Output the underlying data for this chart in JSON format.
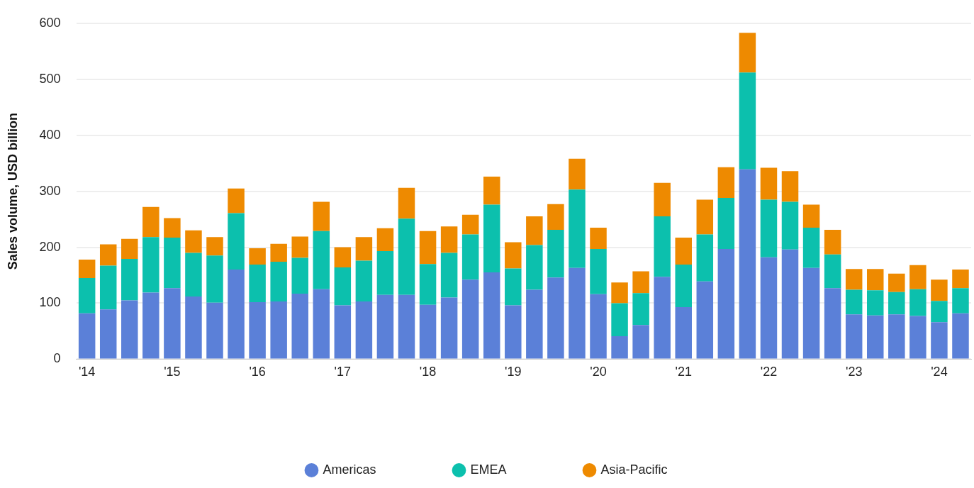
{
  "chart_data": {
    "type": "bar",
    "stacked": true,
    "ylabel": "Sales volume, USD billion",
    "categories": [
      "'14",
      null,
      null,
      null,
      "'15",
      null,
      null,
      null,
      "'16",
      null,
      null,
      null,
      "'17",
      null,
      null,
      null,
      "'18",
      null,
      null,
      null,
      "'19",
      null,
      null,
      null,
      "'20",
      null,
      null,
      null,
      "'21",
      null,
      null,
      null,
      "'22",
      null,
      null,
      null,
      "'23",
      null,
      null,
      null,
      "'24",
      null
    ],
    "series": [
      {
        "name": "Americas",
        "color": "#5b80d8",
        "values": [
          82,
          89,
          105,
          119,
          127,
          112,
          101,
          160,
          102,
          103,
          117,
          125,
          96,
          103,
          115,
          115,
          97,
          110,
          142,
          155,
          96,
          124,
          146,
          163,
          116,
          41,
          61,
          147,
          93,
          139,
          197,
          339,
          182,
          196,
          163,
          127,
          80,
          78,
          80,
          77,
          66,
          82
        ]
      },
      {
        "name": "EMEA",
        "color": "#0cc0ad",
        "values": [
          63,
          78,
          74,
          99,
          90,
          78,
          84,
          101,
          67,
          71,
          64,
          104,
          68,
          73,
          78,
          136,
          73,
          80,
          81,
          121,
          66,
          80,
          85,
          140,
          81,
          59,
          57,
          108,
          76,
          84,
          91,
          173,
          103,
          85,
          72,
          60,
          44,
          45,
          40,
          48,
          38,
          45
        ]
      },
      {
        "name": "Asia-Pacific",
        "color": "#ee8a00",
        "values": [
          33,
          38,
          36,
          54,
          35,
          40,
          33,
          44,
          29,
          32,
          38,
          52,
          36,
          42,
          41,
          55,
          59,
          47,
          35,
          50,
          47,
          51,
          46,
          55,
          38,
          37,
          39,
          60,
          48,
          62,
          55,
          71,
          57,
          55,
          41,
          44,
          37,
          38,
          33,
          43,
          38,
          33
        ]
      }
    ],
    "ylim": [
      0,
      600
    ],
    "yticks": [
      0,
      100,
      200,
      300,
      400,
      500,
      600
    ],
    "grid": "y",
    "legend": "bottom"
  }
}
